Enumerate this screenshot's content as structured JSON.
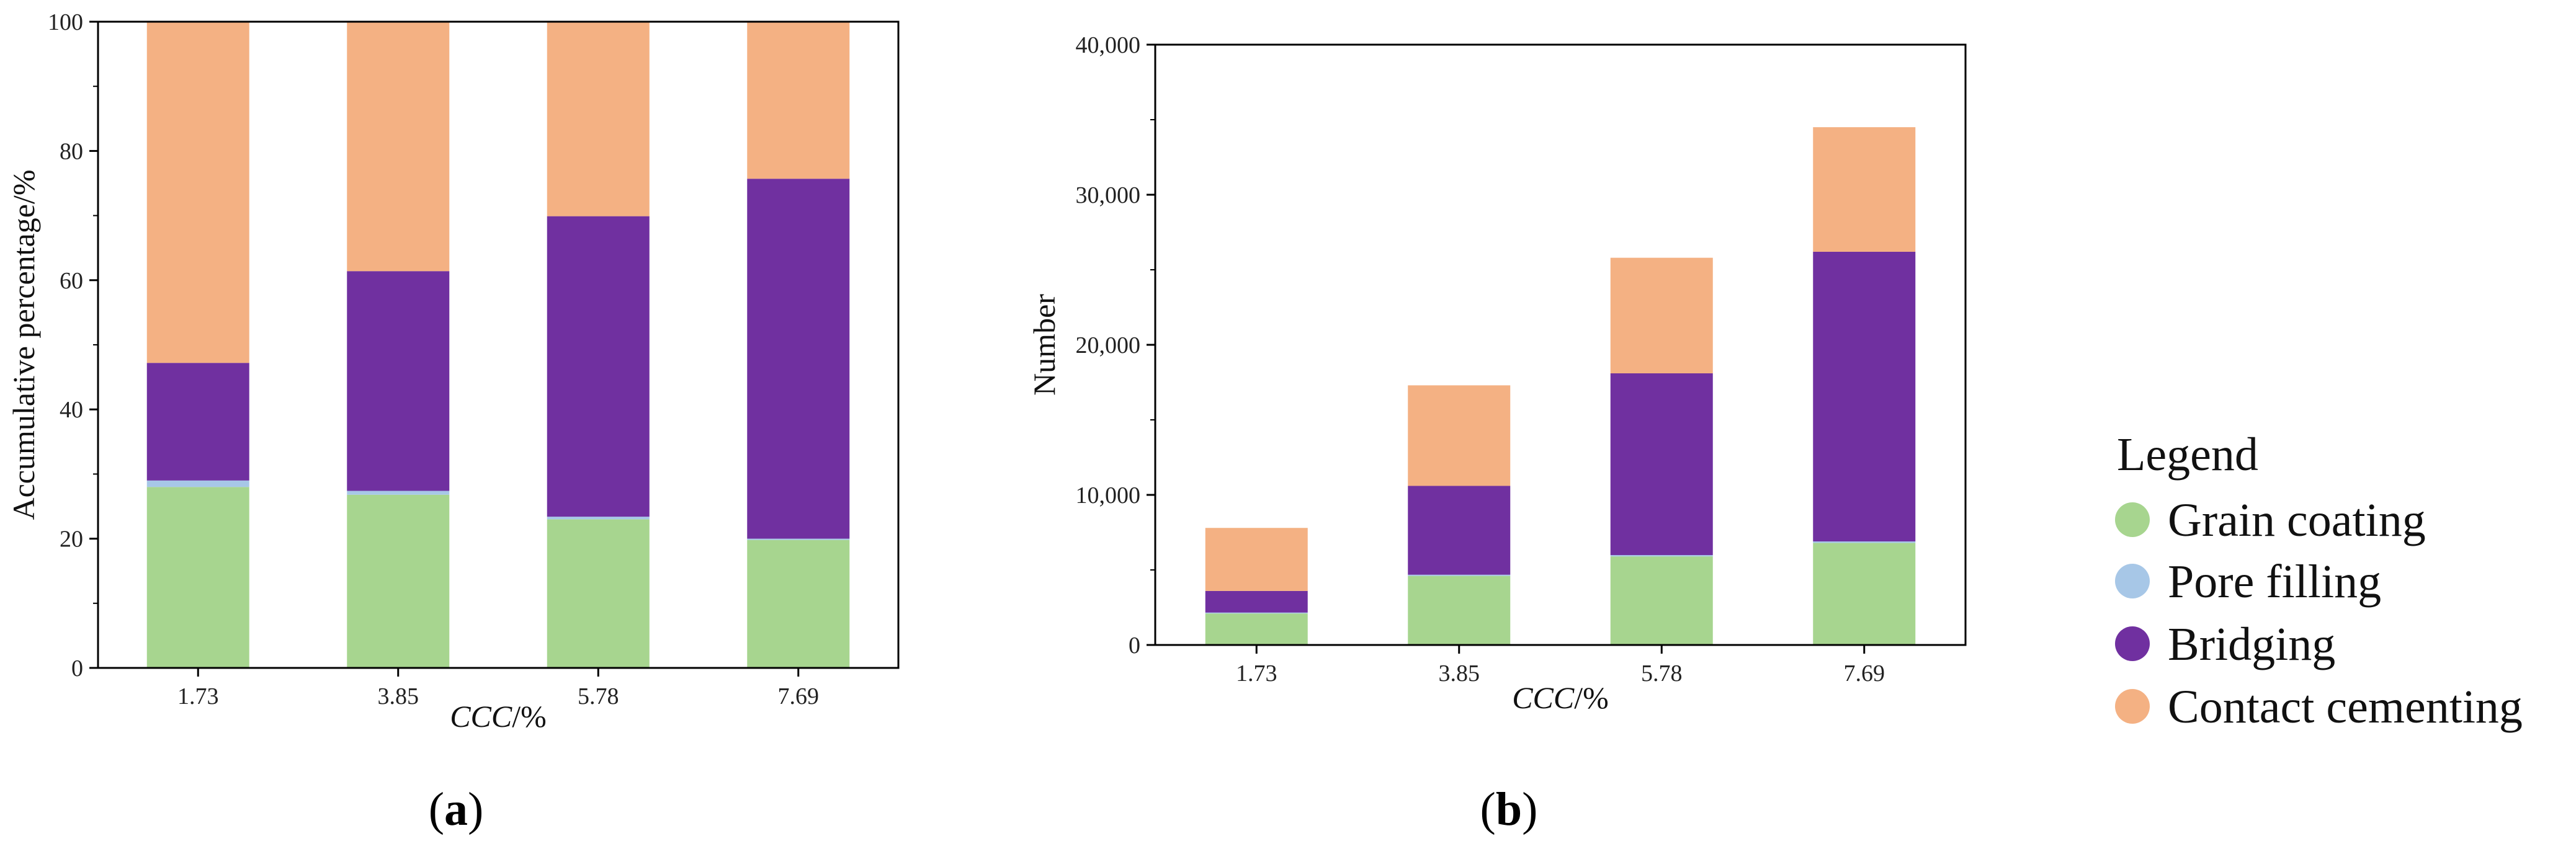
{
  "colors": {
    "grain_coating": "#a7d58f",
    "pore_filling": "#a7c7e7",
    "bridging": "#7030a0",
    "contact_cementing": "#f4b183"
  },
  "legend": {
    "title": "Legend",
    "items": [
      {
        "label": "Grain coating",
        "color": "#a7d58f"
      },
      {
        "label": "Pore filling",
        "color": "#a7c7e7"
      },
      {
        "label": "Bridging",
        "color": "#7030a0"
      },
      {
        "label": "Contact cementing",
        "color": "#f4b183"
      }
    ]
  },
  "panels": {
    "a": {
      "label_open": "(",
      "label_letter": "a",
      "label_close": ")"
    },
    "b": {
      "label_open": "(",
      "label_letter": "b",
      "label_close": ")"
    }
  },
  "chart_data": [
    {
      "type": "bar",
      "stacked": true,
      "id": "a",
      "categories": [
        "1.73",
        "3.85",
        "5.78",
        "7.69"
      ],
      "xlabel_italic": "CCC",
      "xlabel_rest": "/%",
      "ylabel": "Accumulative percentage/%",
      "ylim": [
        0,
        100
      ],
      "yticks": [
        0,
        20,
        40,
        60,
        80,
        100
      ],
      "ytick_labels": [
        "0",
        "20",
        "40",
        "60",
        "80",
        "100"
      ],
      "series": [
        {
          "name": "Grain coating",
          "values": [
            28,
            26.8,
            23,
            19.8
          ]
        },
        {
          "name": "Pore filling",
          "values": [
            1,
            0.6,
            0.4,
            0.2
          ]
        },
        {
          "name": "Bridging",
          "values": [
            18.2,
            34,
            46.5,
            55.7
          ]
        },
        {
          "name": "Contact cementing",
          "values": [
            52.8,
            38.6,
            30.1,
            24.3
          ]
        }
      ]
    },
    {
      "type": "bar",
      "stacked": true,
      "id": "b",
      "categories": [
        "1.73",
        "3.85",
        "5.78",
        "7.69"
      ],
      "xlabel_italic": "CCC",
      "xlabel_rest": "/%",
      "ylabel": "Number",
      "ylim": [
        0,
        40000
      ],
      "yticks": [
        0,
        10000,
        20000,
        30000,
        40000
      ],
      "ytick_labels": [
        "0",
        "10,000",
        "20,000",
        "30,000",
        "40,000"
      ],
      "series": [
        {
          "name": "Grain coating",
          "values": [
            2100,
            4600,
            5900,
            6800
          ]
        },
        {
          "name": "Pore filling",
          "values": [
            60,
            80,
            90,
            100
          ]
        },
        {
          "name": "Bridging",
          "values": [
            1440,
            5920,
            12110,
            19300
          ]
        },
        {
          "name": "Contact cementing",
          "values": [
            4200,
            6700,
            7700,
            8300
          ]
        }
      ]
    }
  ]
}
